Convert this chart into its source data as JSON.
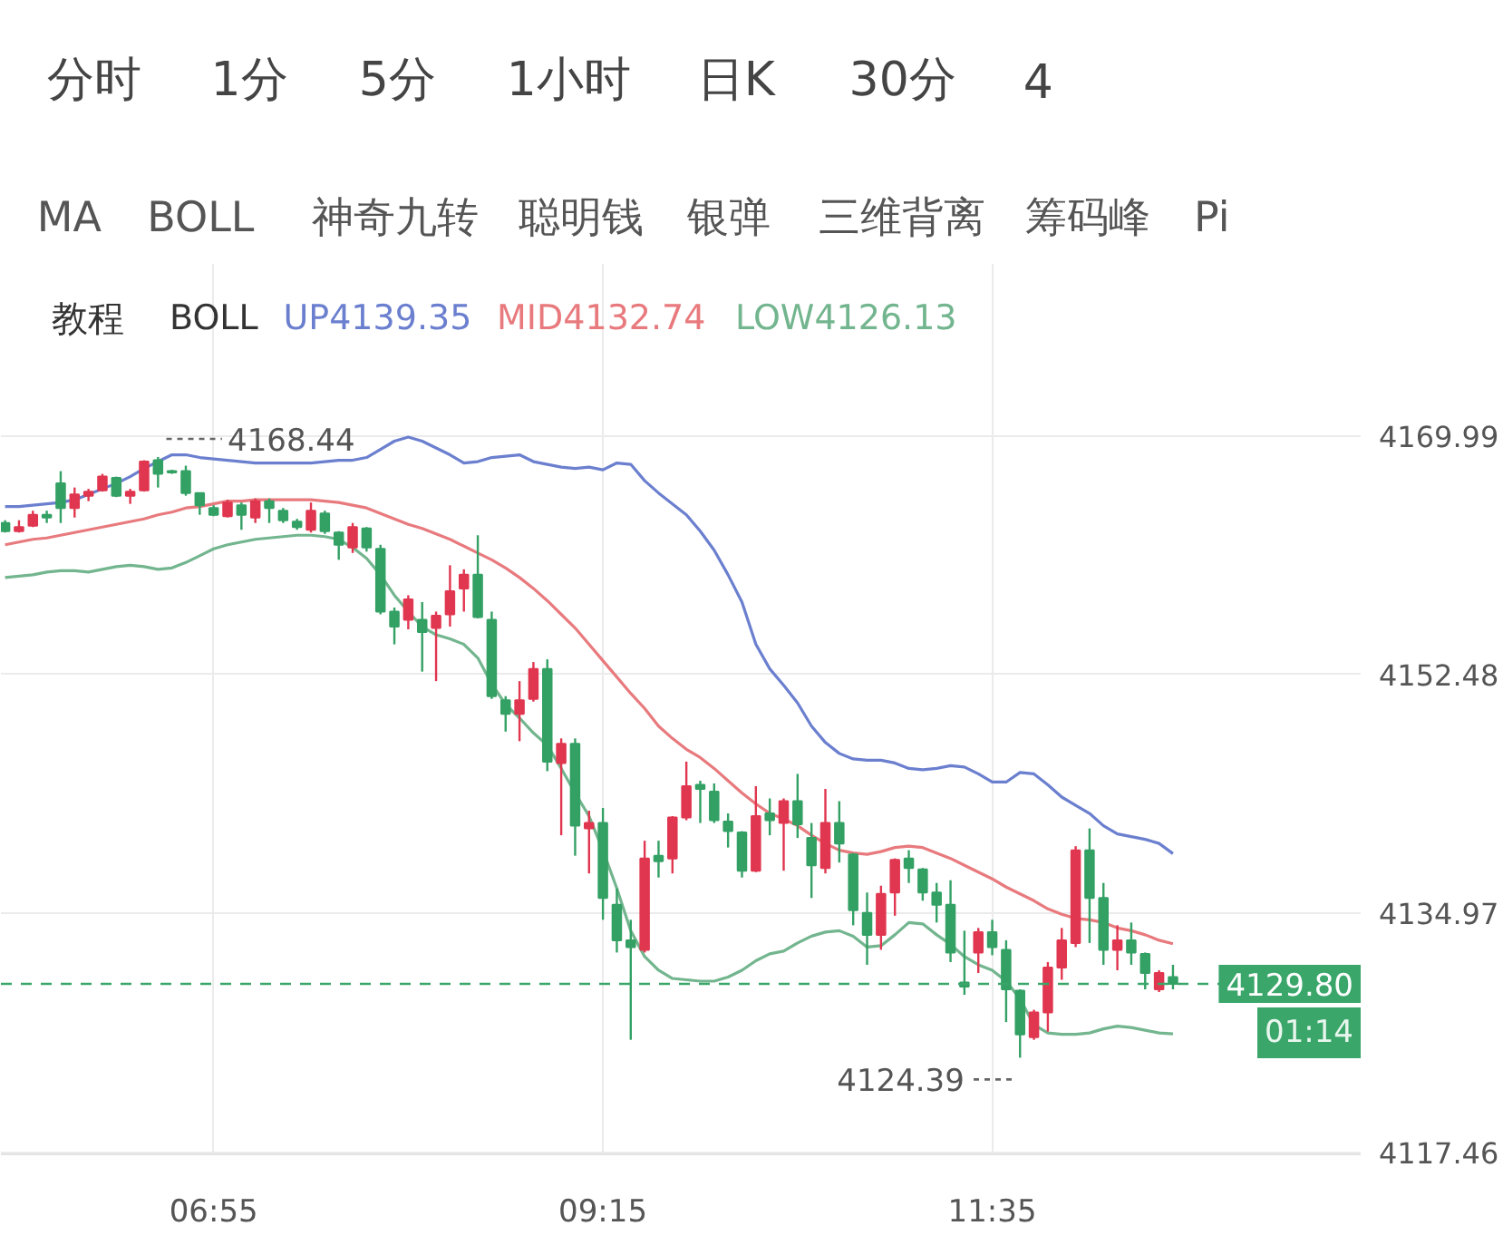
{
  "chart_data": {
    "type": "candlestick",
    "categories": [
      null,
      null,
      null,
      null,
      null,
      null,
      null,
      null,
      null,
      null,
      null,
      null,
      null,
      null,
      null,
      "06:55",
      null,
      null,
      null,
      null,
      null,
      null,
      null,
      null,
      null,
      null,
      null,
      null,
      null,
      null,
      null,
      null,
      null,
      null,
      null,
      null,
      null,
      null,
      null,
      null,
      null,
      null,
      null,
      "09:15",
      null,
      null,
      null,
      null,
      null,
      null,
      null,
      null,
      null,
      null,
      null,
      null,
      null,
      null,
      null,
      null,
      null,
      null,
      null,
      null,
      null,
      null,
      null,
      null,
      null,
      null,
      null,
      "11:35",
      null,
      null,
      null,
      null,
      null,
      null,
      null,
      null,
      null,
      null,
      null,
      null,
      null
    ],
    "ohlc": [
      [
        4163.6,
        4163.8,
        4162.9,
        4163.0
      ],
      [
        4163.0,
        4163.8,
        4162.9,
        4163.3
      ],
      [
        4163.4,
        4164.5,
        4163.3,
        4164.2
      ],
      [
        4164.2,
        4164.5,
        4163.6,
        4164.0
      ],
      [
        4166.5,
        4167.4,
        4163.6,
        4164.7
      ],
      [
        4164.7,
        4166.2,
        4164.0,
        4165.7
      ],
      [
        4165.6,
        4166.1,
        4165.2,
        4165.9
      ],
      [
        4166.0,
        4167.2,
        4165.9,
        4167.0
      ],
      [
        4166.9,
        4167.0,
        4165.5,
        4165.6
      ],
      [
        4165.6,
        4166.1,
        4165.0,
        4165.9
      ],
      [
        4166.0,
        4168.2,
        4165.9,
        4168.1
      ],
      [
        4168.2,
        4168.44,
        4166.2,
        4167.2
      ],
      [
        4167.4,
        4167.5,
        4167.2,
        4167.3
      ],
      [
        4167.4,
        4167.8,
        4165.6,
        4165.8
      ],
      [
        4165.8,
        4165.8,
        4164.2,
        4164.9
      ],
      [
        4164.7,
        4164.9,
        4164.1,
        4164.2
      ],
      [
        4164.1,
        4165.3,
        4164.0,
        4165.1
      ],
      [
        4164.9,
        4165.1,
        4163.1,
        4164.2
      ],
      [
        4164.0,
        4165.4,
        4163.6,
        4165.2
      ],
      [
        4165.2,
        4165.4,
        4163.6,
        4164.7
      ],
      [
        4164.5,
        4164.7,
        4163.6,
        4163.8
      ],
      [
        4163.7,
        4163.9,
        4163.1,
        4163.3
      ],
      [
        4163.1,
        4165.1,
        4162.9,
        4164.5
      ],
      [
        4164.3,
        4164.5,
        4162.8,
        4163.0
      ],
      [
        4162.9,
        4163.0,
        4160.9,
        4162.0
      ],
      [
        4161.8,
        4163.6,
        4161.4,
        4163.3
      ],
      [
        4163.2,
        4163.3,
        4161.5,
        4161.8
      ],
      [
        4161.7,
        4162.0,
        4156.9,
        4157.1
      ],
      [
        4157.1,
        4157.4,
        4154.7,
        4156.0
      ],
      [
        4156.5,
        4158.3,
        4155.8,
        4158.0
      ],
      [
        4156.5,
        4157.8,
        4152.7,
        4155.6
      ],
      [
        4155.9,
        4157.1,
        4152.0,
        4156.8
      ],
      [
        4156.9,
        4160.5,
        4156.0,
        4158.6
      ],
      [
        4158.8,
        4160.2,
        4157.1,
        4159.8
      ],
      [
        4159.8,
        4162.7,
        4156.6,
        4156.7
      ],
      [
        4156.5,
        4157.1,
        4150.7,
        4150.9
      ],
      [
        4150.6,
        4150.9,
        4148.3,
        4149.6
      ],
      [
        4149.6,
        4152.0,
        4147.6,
        4150.6
      ],
      [
        4150.7,
        4153.4,
        4150.5,
        4152.9
      ],
      [
        4152.9,
        4153.6,
        4145.4,
        4146.1
      ],
      [
        4146.0,
        4147.8,
        4140.7,
        4147.4
      ],
      [
        4147.4,
        4147.8,
        4139.2,
        4141.4
      ],
      [
        4141.2,
        4142.5,
        4137.9,
        4141.6
      ],
      [
        4141.6,
        4142.7,
        4134.5,
        4136.1
      ],
      [
        4135.6,
        4136.8,
        4132.1,
        4133.0
      ],
      [
        4133.0,
        4134.5,
        4125.7,
        4132.5
      ],
      [
        4132.3,
        4140.3,
        4132.1,
        4139.0
      ],
      [
        4139.2,
        4140.3,
        4137.6,
        4138.8
      ],
      [
        4139.0,
        4142.1,
        4137.9,
        4142.0
      ],
      [
        4142.0,
        4146.1,
        4141.8,
        4144.3
      ],
      [
        4144.4,
        4144.7,
        4141.6,
        4144.1
      ],
      [
        4143.9,
        4144.5,
        4141.6,
        4141.8
      ],
      [
        4141.7,
        4142.3,
        4139.8,
        4141.0
      ],
      [
        4140.9,
        4141.0,
        4137.6,
        4138.1
      ],
      [
        4138.1,
        4144.3,
        4138.0,
        4142.1
      ],
      [
        4142.3,
        4143.4,
        4140.7,
        4141.8
      ],
      [
        4141.6,
        4143.4,
        4138.1,
        4143.2
      ],
      [
        4143.2,
        4145.2,
        4140.5,
        4141.5
      ],
      [
        4140.5,
        4141.6,
        4136.1,
        4138.5
      ],
      [
        4138.3,
        4144.1,
        4137.9,
        4141.6
      ],
      [
        4141.6,
        4143.2,
        4138.7,
        4140.1
      ],
      [
        4139.3,
        4139.4,
        4134.1,
        4135.2
      ],
      [
        4135.0,
        4136.5,
        4131.2,
        4133.4
      ],
      [
        4133.4,
        4137.0,
        4132.3,
        4136.4
      ],
      [
        4136.5,
        4139.0,
        4134.8,
        4138.9
      ],
      [
        4139.0,
        4139.6,
        4137.2,
        4138.3
      ],
      [
        4138.2,
        4138.3,
        4135.9,
        4136.5
      ],
      [
        4136.5,
        4137.2,
        4134.3,
        4135.6
      ],
      [
        4135.6,
        4137.4,
        4131.4,
        4132.1
      ],
      [
        4129.9,
        4133.7,
        4129.0,
        4129.6
      ],
      [
        4132.1,
        4133.9,
        4130.6,
        4133.6
      ],
      [
        4133.6,
        4134.5,
        4131.9,
        4132.5
      ],
      [
        4132.3,
        4133.0,
        4127.0,
        4129.4
      ],
      [
        4129.3,
        4129.4,
        4124.39,
        4126.1
      ],
      [
        4125.9,
        4127.9,
        4125.7,
        4127.7
      ],
      [
        4127.7,
        4131.4,
        4126.3,
        4131.0
      ],
      [
        4131.0,
        4133.9,
        4130.1,
        4133.0
      ],
      [
        4132.8,
        4139.9,
        4132.5,
        4139.6
      ],
      [
        4139.6,
        4141.2,
        4132.8,
        4136.1
      ],
      [
        4136.1,
        4137.2,
        4131.2,
        4132.3
      ],
      [
        4132.3,
        4134.1,
        4130.8,
        4133.0
      ],
      [
        4133.0,
        4134.3,
        4131.2,
        4132.1
      ],
      [
        4132.0,
        4132.1,
        4129.4,
        4130.6
      ],
      [
        4129.4,
        4130.8,
        4129.2,
        4130.6
      ],
      [
        4130.3,
        4131.2,
        4129.4,
        4129.8
      ]
    ],
    "colors": [
      "#33a064",
      "#e0364f",
      "#e0364f",
      "#33a064",
      "#33a064",
      "#e0364f",
      "#e0364f",
      "#e0364f",
      "#33a064",
      "#e0364f",
      "#e0364f",
      "#33a064",
      "#33a064",
      "#33a064",
      "#33a064",
      "#33a064",
      "#e0364f",
      "#33a064",
      "#e0364f",
      "#33a064",
      "#33a064",
      "#33a064",
      "#e0364f",
      "#33a064",
      "#33a064",
      "#e0364f",
      "#33a064",
      "#33a064",
      "#33a064",
      "#e0364f",
      "#33a064",
      "#e0364f",
      "#e0364f",
      "#e0364f",
      "#33a064",
      "#33a064",
      "#33a064",
      "#e0364f",
      "#e0364f",
      "#33a064",
      "#e0364f",
      "#33a064",
      "#e0364f",
      "#33a064",
      "#33a064",
      "#33a064",
      "#e0364f",
      "#33a064",
      "#e0364f",
      "#e0364f",
      "#33a064",
      "#33a064",
      "#33a064",
      "#33a064",
      "#e0364f",
      "#33a064",
      "#e0364f",
      "#33a064",
      "#33a064",
      "#e0364f",
      "#33a064",
      "#33a064",
      "#33a064",
      "#e0364f",
      "#e0364f",
      "#33a064",
      "#33a064",
      "#33a064",
      "#33a064",
      "#33a064",
      "#e0364f",
      "#33a064",
      "#33a064",
      "#33a064",
      "#e0364f",
      "#e0364f",
      "#e0364f",
      "#e0364f",
      "#33a064",
      "#33a064",
      "#e0364f",
      "#33a064",
      "#33a064",
      "#e0364f",
      "#33a064"
    ],
    "series": [
      {
        "type": "line",
        "name": "UP4139.35",
        "color": "#6b7fcf",
        "values": [
          4164.8,
          4164.8,
          4164.9,
          4165.0,
          4165.1,
          4165.3,
          4165.7,
          4166.1,
          4166.5,
          4167.0,
          4167.6,
          4168.1,
          4168.6,
          4168.6,
          4168.4,
          4168.3,
          4168.2,
          4168.1,
          4168.0,
          4168.0,
          4168.0,
          4168.0,
          4168.0,
          4168.1,
          4168.2,
          4168.2,
          4168.4,
          4169.0,
          4169.6,
          4169.9,
          4169.6,
          4169.1,
          4168.6,
          4168.0,
          4168.1,
          4168.4,
          4168.5,
          4168.6,
          4168.1,
          4167.9,
          4167.7,
          4167.6,
          4167.7,
          4167.5,
          4168.0,
          4167.9,
          4166.7,
          4165.8,
          4165.0,
          4164.2,
          4163.0,
          4161.6,
          4159.8,
          4157.8,
          4154.7,
          4152.9,
          4151.7,
          4150.4,
          4148.7,
          4147.5,
          4146.7,
          4146.3,
          4146.2,
          4146.2,
          4146.0,
          4145.6,
          4145.5,
          4145.6,
          4145.8,
          4145.7,
          4145.2,
          4144.6,
          4144.6,
          4145.3,
          4145.2,
          4144.4,
          4143.5,
          4142.9,
          4142.3,
          4141.4,
          4140.8,
          4140.6,
          4140.4,
          4140.1,
          4139.35
        ]
      },
      {
        "type": "line",
        "name": "MID4132.74",
        "color": "#e87a7e",
        "values": [
          4162.0,
          4162.2,
          4162.4,
          4162.5,
          4162.7,
          4162.9,
          4163.1,
          4163.3,
          4163.5,
          4163.7,
          4163.9,
          4164.2,
          4164.4,
          4164.7,
          4164.8,
          4165.0,
          4165.2,
          4165.2,
          4165.3,
          4165.3,
          4165.3,
          4165.3,
          4165.3,
          4165.2,
          4165.1,
          4164.9,
          4164.7,
          4164.3,
          4163.9,
          4163.5,
          4163.2,
          4162.8,
          4162.4,
          4161.9,
          4161.4,
          4160.9,
          4160.3,
          4159.6,
          4158.8,
          4157.9,
          4156.9,
          4155.9,
          4154.7,
          4153.5,
          4152.3,
          4151.1,
          4150.0,
          4148.7,
          4147.8,
          4147.0,
          4146.4,
          4145.6,
          4144.7,
          4143.8,
          4143.0,
          4142.3,
          4141.9,
          4141.4,
          4140.7,
          4140.1,
          4139.6,
          4139.4,
          4139.3,
          4139.5,
          4139.8,
          4139.9,
          4139.8,
          4139.4,
          4139.0,
          4138.5,
          4138.0,
          4137.5,
          4136.9,
          4136.4,
          4135.9,
          4135.3,
          4134.9,
          4134.6,
          4134.5,
          4134.3,
          4133.9,
          4133.7,
          4133.4,
          4133.0,
          4132.74
        ]
      },
      {
        "type": "line",
        "name": "LOW4126.13",
        "color": "#72b58e",
        "values": [
          4159.6,
          4159.7,
          4159.8,
          4160.0,
          4160.1,
          4160.1,
          4160.0,
          4160.2,
          4160.4,
          4160.5,
          4160.4,
          4160.2,
          4160.3,
          4160.7,
          4161.2,
          4161.7,
          4162.0,
          4162.2,
          4162.4,
          4162.5,
          4162.6,
          4162.7,
          4162.7,
          4162.6,
          4162.4,
          4161.8,
          4161.0,
          4159.8,
          4158.3,
          4157.1,
          4156.0,
          4155.4,
          4155.1,
          4154.7,
          4153.7,
          4151.8,
          4150.3,
          4149.3,
          4148.2,
          4147.3,
          4145.6,
          4143.8,
          4142.1,
          4139.6,
          4136.8,
          4133.7,
          4131.8,
          4130.8,
          4130.2,
          4130.1,
          4130.0,
          4130.0,
          4130.3,
          4130.8,
          4131.5,
          4132.0,
          4132.2,
          4132.8,
          4133.3,
          4133.6,
          4133.7,
          4133.3,
          4132.5,
          4132.6,
          4133.4,
          4134.3,
          4134.2,
          4133.4,
          4132.7,
          4131.8,
          4131.2,
          4130.8,
          4130.0,
          4128.7,
          4126.8,
          4126.2,
          4126.1,
          4126.1,
          4126.2,
          4126.5,
          4126.7,
          4126.6,
          4126.4,
          4126.2,
          4126.13
        ]
      }
    ],
    "legend": "top left",
    "legend_title": "BOLL",
    "annotations": [
      "分时 1分 5分 1小时 日K 30分 4",
      "MA BOLL 神奇九转 聪明钱 银弹 三维背离 筹码峰 Pi",
      "教程",
      {
        "text": "4168.44",
        "y": 4168.44
      },
      "4124.39",
      {
        "text": "4129.80",
        "y": 4129.8
      },
      "01:14"
    ],
    "ref_lines": [
      {
        "axis": "y",
        "value": 4129.8,
        "color": "#3aa66a",
        "line_style": "dashed"
      }
    ],
    "ylim": [
      4117.3,
      4182.6
    ],
    "yticks": [
      4169.99,
      4152.48,
      4134.97,
      4117.46
    ],
    "grid": true
  }
}
